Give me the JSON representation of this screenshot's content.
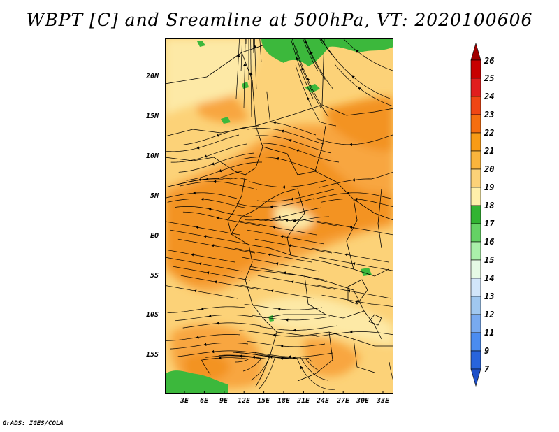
{
  "title": "WBPT [C] and Sreamline at 500hPa, VT: 2020100606",
  "footer": "GrADS: IGES/COLA",
  "lat_labels": [
    "20N",
    "15N",
    "10N",
    "5N",
    "EQ",
    "5S",
    "10S",
    "15S"
  ],
  "lon_labels": [
    "3E",
    "6E",
    "9E",
    "12E",
    "15E",
    "18E",
    "21E",
    "24E",
    "27E",
    "30E",
    "33E"
  ],
  "colorbar": {
    "levels": [
      "26",
      "25",
      "24",
      "23",
      "22",
      "21",
      "20",
      "19",
      "18",
      "17",
      "16",
      "15",
      "14",
      "13",
      "12",
      "11",
      "9",
      "7"
    ],
    "colors": [
      "#a00000",
      "#c80000",
      "#e01e1e",
      "#f04614",
      "#f56e0f",
      "#f89b16",
      "#fab43c",
      "#fcd278",
      "#fff0aa",
      "#32b432",
      "#64d264",
      "#aaf0aa",
      "#e6fae6",
      "#d2e6fa",
      "#a0c8f0",
      "#78aaf0",
      "#4b8cf0",
      "#2864dc",
      "#1e50c8"
    ]
  },
  "map_colors": {
    "base": "#fcd278",
    "warm": "#f8a640",
    "hot": "#f39320",
    "pale": "#fde9a6",
    "green": "#3cb83c"
  }
}
